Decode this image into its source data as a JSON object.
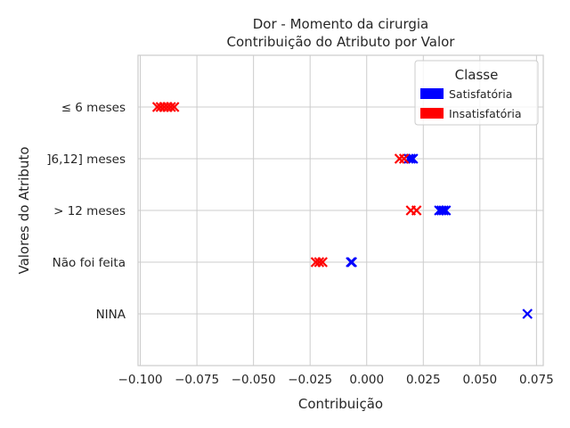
{
  "chart_data": {
    "type": "scatter",
    "title": "Dor - Momento da cirurgia",
    "subtitle": "Contribuição do Atributo por Valor",
    "xlabel": "Contribuição",
    "ylabel": "Valores do Atributo",
    "xlim": [
      -0.101,
      0.078
    ],
    "x_ticks": [
      -0.1,
      -0.075,
      -0.05,
      -0.025,
      0.0,
      0.025,
      0.05,
      0.075
    ],
    "x_tick_labels": [
      "−0.100",
      "−0.075",
      "−0.050",
      "−0.025",
      "0.000",
      "0.025",
      "0.050",
      "0.075"
    ],
    "categories": [
      "≤ 6 meses",
      "]6,12] meses",
      "> 12 meses",
      "Não foi feita",
      "NINA"
    ],
    "grid": true,
    "marker": "x",
    "legend": {
      "title": "Classe",
      "placement": "top-right",
      "entries": [
        {
          "label": "Satisfatória",
          "color": "#0000ff"
        },
        {
          "label": "Insatisfatória",
          "color": "#ff0000"
        }
      ]
    },
    "series": [
      {
        "key": "satisfatoria",
        "color": "#0000ff",
        "points": [
          {
            "category": "]6,12] meses",
            "x": 0.0185
          },
          {
            "category": "]6,12] meses",
            "x": 0.0195
          },
          {
            "category": "]6,12] meses",
            "x": 0.0205
          },
          {
            "category": "> 12 meses",
            "x": 0.032
          },
          {
            "category": "> 12 meses",
            "x": 0.033
          },
          {
            "category": "> 12 meses",
            "x": 0.034
          },
          {
            "category": "> 12 meses",
            "x": 0.035
          },
          {
            "category": "Não foi feita",
            "x": -0.007
          },
          {
            "category": "Não foi feita",
            "x": -0.0065
          },
          {
            "category": "NINA",
            "x": 0.071
          }
        ]
      },
      {
        "key": "insatisfatoria",
        "color": "#ff0000",
        "points": [
          {
            "category": "≤ 6 meses",
            "x": -0.0925
          },
          {
            "category": "≤ 6 meses",
            "x": -0.091
          },
          {
            "category": "≤ 6 meses",
            "x": -0.0895
          },
          {
            "category": "≤ 6 meses",
            "x": -0.088
          },
          {
            "category": "≤ 6 meses",
            "x": -0.0865
          },
          {
            "category": "≤ 6 meses",
            "x": -0.085
          },
          {
            "category": "]6,12] meses",
            "x": 0.0145
          },
          {
            "category": "]6,12] meses",
            "x": 0.0165
          },
          {
            "category": "> 12 meses",
            "x": 0.0195
          },
          {
            "category": "> 12 meses",
            "x": 0.022
          },
          {
            "category": "Não foi feita",
            "x": -0.0225
          },
          {
            "category": "Não foi feita",
            "x": -0.021
          },
          {
            "category": "Não foi feita",
            "x": -0.0195
          }
        ]
      }
    ]
  }
}
